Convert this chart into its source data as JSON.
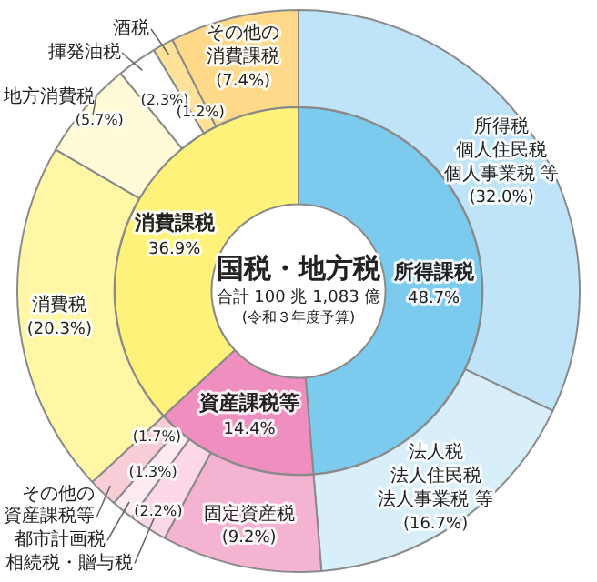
{
  "chart_data": [
    {
      "type": "donut",
      "title": "国税・地方税",
      "subtitle": "合計 100 兆 1,083 億",
      "annotations": [
        "(令和３年度予算)"
      ],
      "categories": [
        "所得課税",
        "資産課税等",
        "消費課税"
      ],
      "values": [
        48.7,
        14.4,
        36.9
      ],
      "colors": [
        "#7ccbef",
        "#ef8fbf",
        "#fff27a"
      ],
      "value_labels": [
        "48.7%",
        "14.4%",
        "36.9%"
      ]
    },
    {
      "type": "donut",
      "categories": [
        "所得税個人住民税個人事業税 等",
        "法人税法人住民税法人事業税 等",
        "固定資産税",
        "相続税・贈与税",
        "都市計画税",
        "その他の資産課税等",
        "消費税",
        "地方消費税",
        "揮発油税",
        "酒税",
        "その他の消費課税"
      ],
      "values": [
        32.0,
        16.7,
        9.2,
        2.2,
        1.3,
        1.7,
        20.3,
        5.7,
        2.3,
        1.2,
        7.4
      ],
      "colors": [
        "#bfe3f7",
        "#d8effa",
        "#f5b3d2",
        "#fbd7e7",
        "#fde9f2",
        "#f9cdd6",
        "#fff6a6",
        "#fffbd8",
        "#ffffff",
        "#ffe29a",
        "#ffd98a"
      ],
      "value_labels": [
        "(32.0%)",
        "(16.7%)",
        "(9.2%)",
        "(2.2%)",
        "(1.3%)",
        "(1.7%)",
        "(20.3%)",
        "(5.7%)",
        "(2.3%)",
        "(1.2%)",
        "(7.4%)"
      ]
    }
  ]
}
